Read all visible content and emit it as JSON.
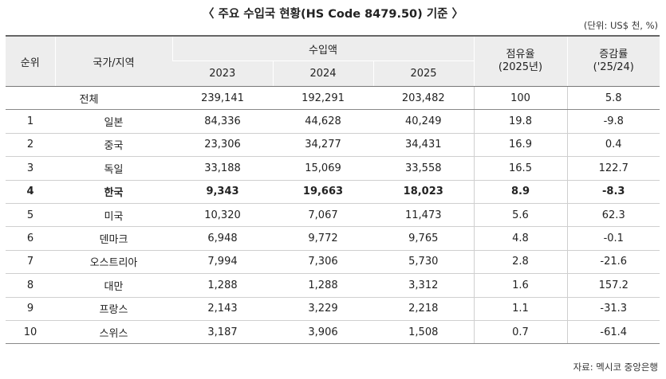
{
  "title": "〈 주요 수입국 현황(HS Code 8479.50) 기준 〉",
  "unit": "(단위: US$ 천, %)",
  "headers": {
    "rank": "순위",
    "country": "국가/지역",
    "import_amount": "수입액",
    "years": [
      "2023",
      "2024",
      "2025"
    ],
    "share_line1": "점유율",
    "share_line2": "(2025년)",
    "change_line1": "증감률",
    "change_line2": "('25/24)"
  },
  "total": {
    "label": "전체",
    "y2023": "239,141",
    "y2024": "192,291",
    "y2025": "203,482",
    "share": "100",
    "change": "5.8"
  },
  "rows": [
    {
      "rank": "1",
      "country": "일본",
      "y2023": "84,336",
      "y2024": "44,628",
      "y2025": "40,249",
      "share": "19.8",
      "change": "-9.8"
    },
    {
      "rank": "2",
      "country": "중국",
      "y2023": "23,306",
      "y2024": "34,277",
      "y2025": "34,431",
      "share": "16.9",
      "change": "0.4"
    },
    {
      "rank": "3",
      "country": "독일",
      "y2023": "33,188",
      "y2024": "15,069",
      "y2025": "33,558",
      "share": "16.5",
      "change": "122.7"
    },
    {
      "rank": "4",
      "country": "한국",
      "y2023": "9,343",
      "y2024": "19,663",
      "y2025": "18,023",
      "share": "8.9",
      "change": "-8.3"
    },
    {
      "rank": "5",
      "country": "미국",
      "y2023": "10,320",
      "y2024": "7,067",
      "y2025": "11,473",
      "share": "5.6",
      "change": "62.3"
    },
    {
      "rank": "6",
      "country": "덴마크",
      "y2023": "6,948",
      "y2024": "9,772",
      "y2025": "9,765",
      "share": "4.8",
      "change": "-0.1"
    },
    {
      "rank": "7",
      "country": "오스트리아",
      "y2023": "7,994",
      "y2024": "7,306",
      "y2025": "5,730",
      "share": "2.8",
      "change": "-21.6"
    },
    {
      "rank": "8",
      "country": "대만",
      "y2023": "1,288",
      "y2024": "1,288",
      "y2025": "3,312",
      "share": "1.6",
      "change": "157.2"
    },
    {
      "rank": "9",
      "country": "프랑스",
      "y2023": "2,143",
      "y2024": "3,229",
      "y2025": "2,218",
      "share": "1.1",
      "change": "-31.3"
    },
    {
      "rank": "10",
      "country": "스위스",
      "y2023": "3,187",
      "y2024": "3,906",
      "y2025": "1,508",
      "share": "0.7",
      "change": "-61.4"
    }
  ],
  "source": "자료: 멕시코 중앙은행"
}
